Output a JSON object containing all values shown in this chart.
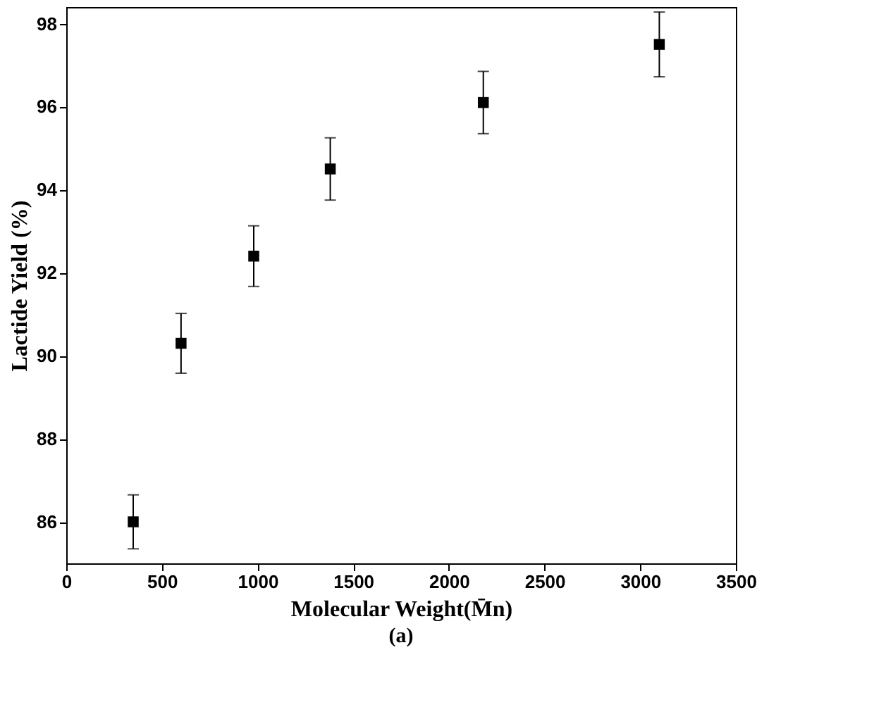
{
  "chart_data": {
    "type": "scatter",
    "xlabel": "Molecular Weight(M̄n)",
    "ylabel": "Lactide Yield (%)",
    "x": [
      350,
      600,
      980,
      1380,
      2180,
      3100
    ],
    "values": [
      86.0,
      90.3,
      92.4,
      94.5,
      96.1,
      97.5
    ],
    "errors": [
      0.65,
      0.72,
      0.73,
      0.75,
      0.75,
      0.78
    ],
    "color": "#000000",
    "marker": "square",
    "grid": false,
    "legend": false,
    "xlim": [
      0,
      3500
    ],
    "xticks": [
      0,
      500,
      1000,
      1500,
      2000,
      2500,
      3000,
      3500
    ],
    "ylim": [
      85,
      98.4
    ],
    "yticks": [
      86,
      88,
      90,
      92,
      94,
      96,
      98
    ],
    "annotations": [
      "(a)"
    ]
  }
}
